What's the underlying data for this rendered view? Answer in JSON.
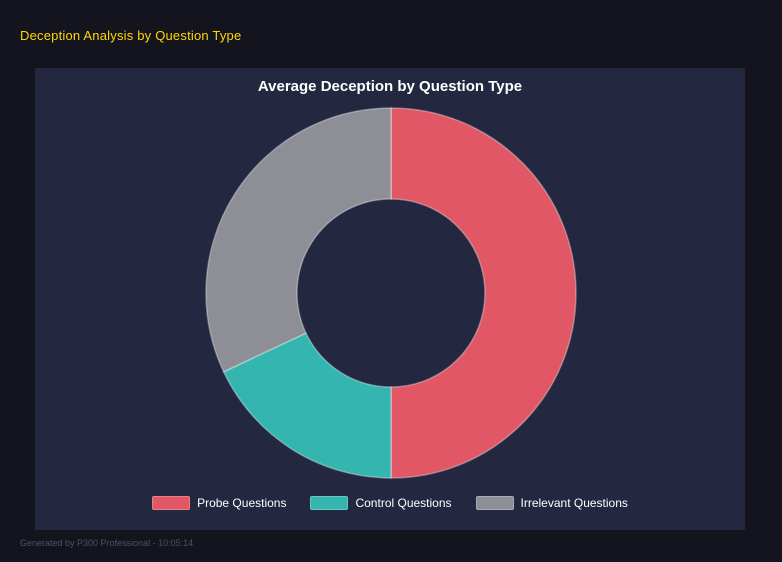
{
  "page": {
    "title": "Deception Analysis by Question Type",
    "footer": "Generated by P300 Professional - 10:05:14"
  },
  "theme": {
    "background": "#14141e",
    "panel_background": "#232840",
    "title_color": "#ffd700",
    "text_color": "#ffffff",
    "footer_color": "#4d5263"
  },
  "chart_data": {
    "type": "pie",
    "subtype": "donut",
    "title": "Average Deception by Question Type",
    "labels": [
      "Probe Questions",
      "Control Questions",
      "Irrelevant Questions"
    ],
    "values": [
      50,
      18,
      32
    ],
    "colors": [
      "#e25765",
      "#35b5af",
      "#8e8e96"
    ],
    "start_angle_deg": 0,
    "clockwise": true,
    "inner_radius_ratio": 0.51,
    "legend_position": "bottom",
    "grid": false
  }
}
